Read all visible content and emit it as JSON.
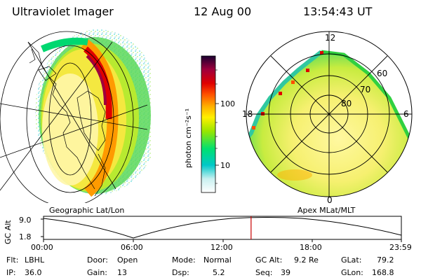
{
  "header": {
    "instrument": "Ultraviolet Imager",
    "date": "12 Aug 00",
    "time": "13:54:43 UT"
  },
  "colorbar": {
    "unit_label": "photon cm⁻²s⁻¹",
    "tick_labels": [
      "100",
      "10"
    ],
    "scale": "log",
    "colors": [
      "#ffffff",
      "#00c8c8",
      "#00e070",
      "#9ae600",
      "#fff000",
      "#ffb000",
      "#ff5000",
      "#e00000",
      "#a0003c",
      "#1a0030"
    ]
  },
  "left_map": {
    "caption": "Geographic Lat/Lon"
  },
  "right_map": {
    "caption": "Apex MLat/MLT",
    "lat_labels": [
      "60",
      "70",
      "80"
    ],
    "mlt_labels": {
      "top": "12",
      "left": "18",
      "right": "6",
      "bottom": "0"
    }
  },
  "timeline": {
    "y_axis_label": "GC Alt",
    "y_ticks": [
      "9.0",
      "1.8"
    ],
    "x_ticks": [
      "00:00",
      "06:00",
      "12:00",
      "18:00",
      "23:59"
    ],
    "marker_time": "13:54:43",
    "marker_color": "#c80000"
  },
  "info": {
    "filter_label": "Flt:",
    "filter_value": "LBHL",
    "ip_label": "IP:",
    "ip_value": "36.0",
    "door_label": "Door:",
    "door_value": "Open",
    "gain_label": "Gain:",
    "gain_value": "13",
    "mode_label": "Mode:",
    "mode_value": "Normal",
    "dsp_label": "Dsp:",
    "dsp_value": "5.2",
    "gcalt_label": "GC Alt:",
    "gcalt_value": "9.2 Re",
    "seq_label": "Seq:",
    "seq_value": "39",
    "glat_label": "GLat:",
    "glat_value": "79.2",
    "glon_label": "GLon:",
    "glon_value": "168.8"
  }
}
